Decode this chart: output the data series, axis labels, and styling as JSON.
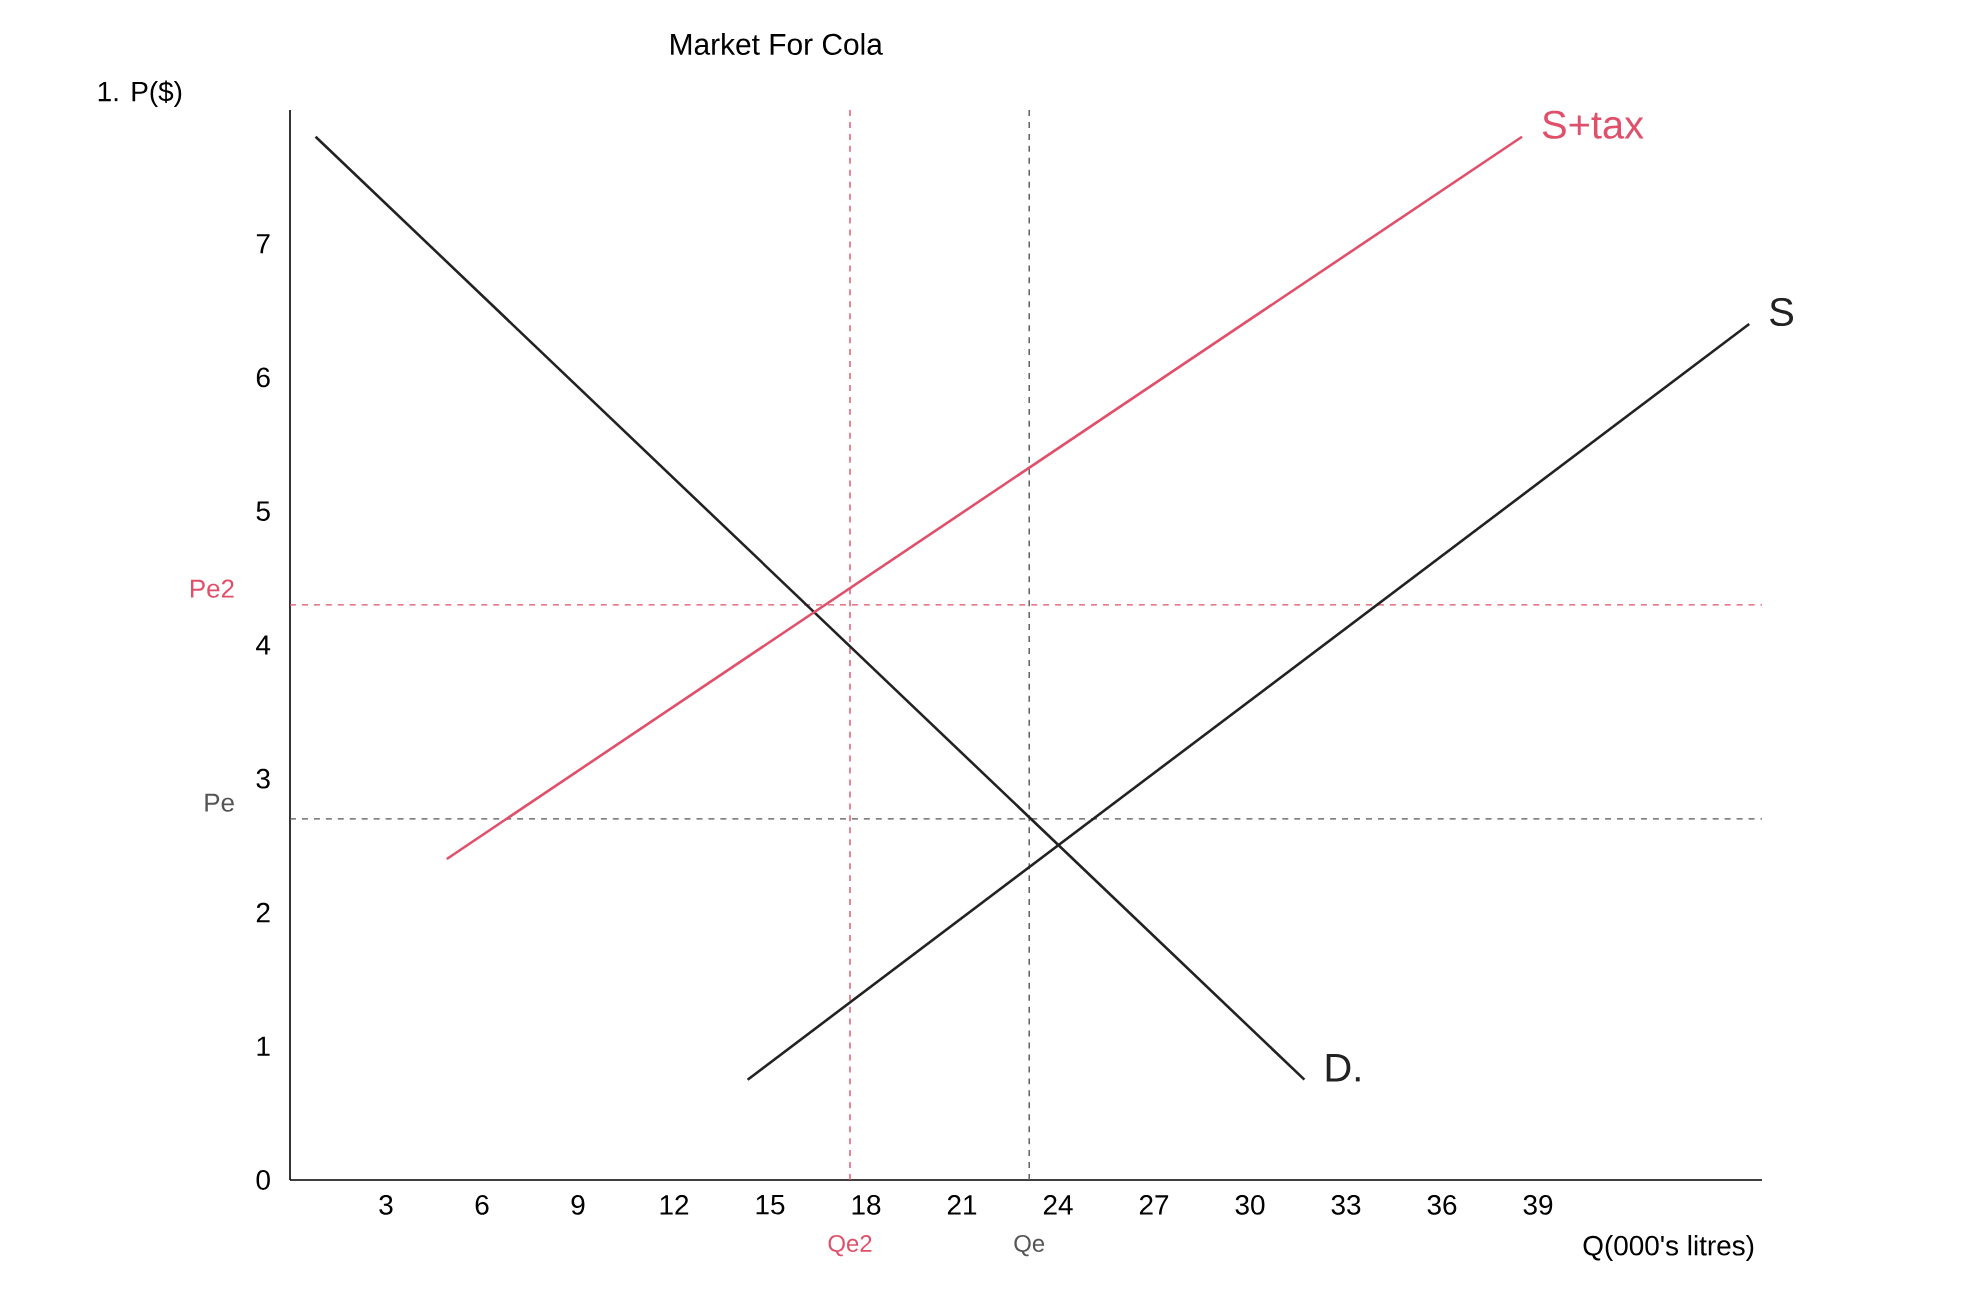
{
  "chart_data": {
    "type": "line",
    "title": "Market For Cola",
    "xlabel": "Q(000's litres)",
    "ylabel": "1. P($)",
    "xlim": [
      0,
      46
    ],
    "ylim": [
      0,
      8
    ],
    "xticks": [
      3,
      6,
      9,
      12,
      15,
      18,
      21,
      24,
      27,
      30,
      33,
      36,
      39
    ],
    "yticks": [
      0,
      1,
      2,
      3,
      4,
      5,
      6,
      7
    ],
    "series": [
      {
        "name": "D.",
        "color": "#222222",
        "x": [
          0.8,
          31.7
        ],
        "values": [
          7.8,
          0.75
        ]
      },
      {
        "name": "S",
        "color": "#222222",
        "x": [
          14.3,
          45.6
        ],
        "values": [
          0.75,
          6.4
        ]
      },
      {
        "name": "S+tax",
        "color": "#e0506a",
        "x": [
          4.9,
          38.5
        ],
        "values": [
          2.4,
          7.8
        ]
      }
    ],
    "ref_lines": [
      {
        "axis": "y",
        "value": 2.7,
        "label": "Pe",
        "color": "#555555",
        "line_style": "dashed"
      },
      {
        "axis": "y",
        "value": 4.3,
        "label": "Pe2",
        "color": "#e0506a",
        "line_style": "dashed"
      },
      {
        "axis": "x",
        "value": 23.1,
        "label": "Qe",
        "color": "#555555",
        "line_style": "dashed"
      },
      {
        "axis": "x",
        "value": 17.5,
        "label": "Qe2",
        "color": "#e0506a",
        "line_style": "dashed"
      }
    ],
    "grid": false,
    "marker": "none",
    "line_style": "solid"
  }
}
